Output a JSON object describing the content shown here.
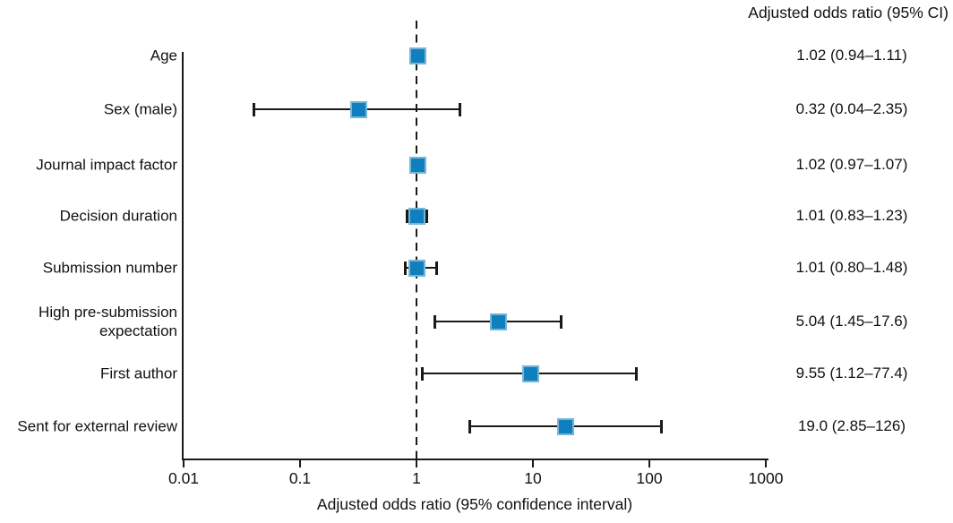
{
  "header": {
    "right_column_title": "Adjusted odds ratio (95% CI)"
  },
  "chart_data": {
    "type": "scatter",
    "subtype": "forest-plot",
    "title": "",
    "xlabel": "Adjusted odds ratio (95% confidence interval)",
    "ylabel": "",
    "x_scale": "log",
    "xlim": [
      0.01,
      1000
    ],
    "x_ticks": [
      "0.01",
      "0.1",
      "1",
      "10",
      "100",
      "1000"
    ],
    "x_tick_values": [
      0.01,
      0.1,
      1,
      10,
      100,
      1000
    ],
    "reference_line_value": 1,
    "grid": "off",
    "marker_color": "#0f80bd",
    "rows": [
      {
        "label": "Age",
        "label_lines": [
          "Age"
        ],
        "estimate": 1.02,
        "ci_low": 0.94,
        "ci_high": 1.11,
        "display": "1.02 (0.94–1.11)"
      },
      {
        "label": "Sex (male)",
        "label_lines": [
          "Sex (male)"
        ],
        "estimate": 0.32,
        "ci_low": 0.04,
        "ci_high": 2.35,
        "display": "0.32 (0.04–2.35)"
      },
      {
        "label": "Journal impact factor",
        "label_lines": [
          "Journal impact factor"
        ],
        "estimate": 1.02,
        "ci_low": 0.97,
        "ci_high": 1.07,
        "display": "1.02 (0.97–1.07)"
      },
      {
        "label": "Decision duration",
        "label_lines": [
          "Decision duration"
        ],
        "estimate": 1.01,
        "ci_low": 0.83,
        "ci_high": 1.23,
        "display": "1.01 (0.83–1.23)"
      },
      {
        "label": "Submission number",
        "label_lines": [
          "Submission number"
        ],
        "estimate": 1.01,
        "ci_low": 0.8,
        "ci_high": 1.48,
        "display": "1.01 (0.80–1.48)"
      },
      {
        "label": "High pre-submission expectation",
        "label_lines": [
          "High pre-submission",
          "expectation"
        ],
        "estimate": 5.04,
        "ci_low": 1.45,
        "ci_high": 17.6,
        "display": "5.04 (1.45–17.6)"
      },
      {
        "label": "First author",
        "label_lines": [
          "First author"
        ],
        "estimate": 9.55,
        "ci_low": 1.12,
        "ci_high": 77.4,
        "display": "9.55 (1.12–77.4)"
      },
      {
        "label": "Sent for external review",
        "label_lines": [
          "Sent for external review"
        ],
        "estimate": 19.0,
        "ci_low": 2.85,
        "ci_high": 126,
        "display": "19.0 (2.85–126)"
      }
    ]
  }
}
